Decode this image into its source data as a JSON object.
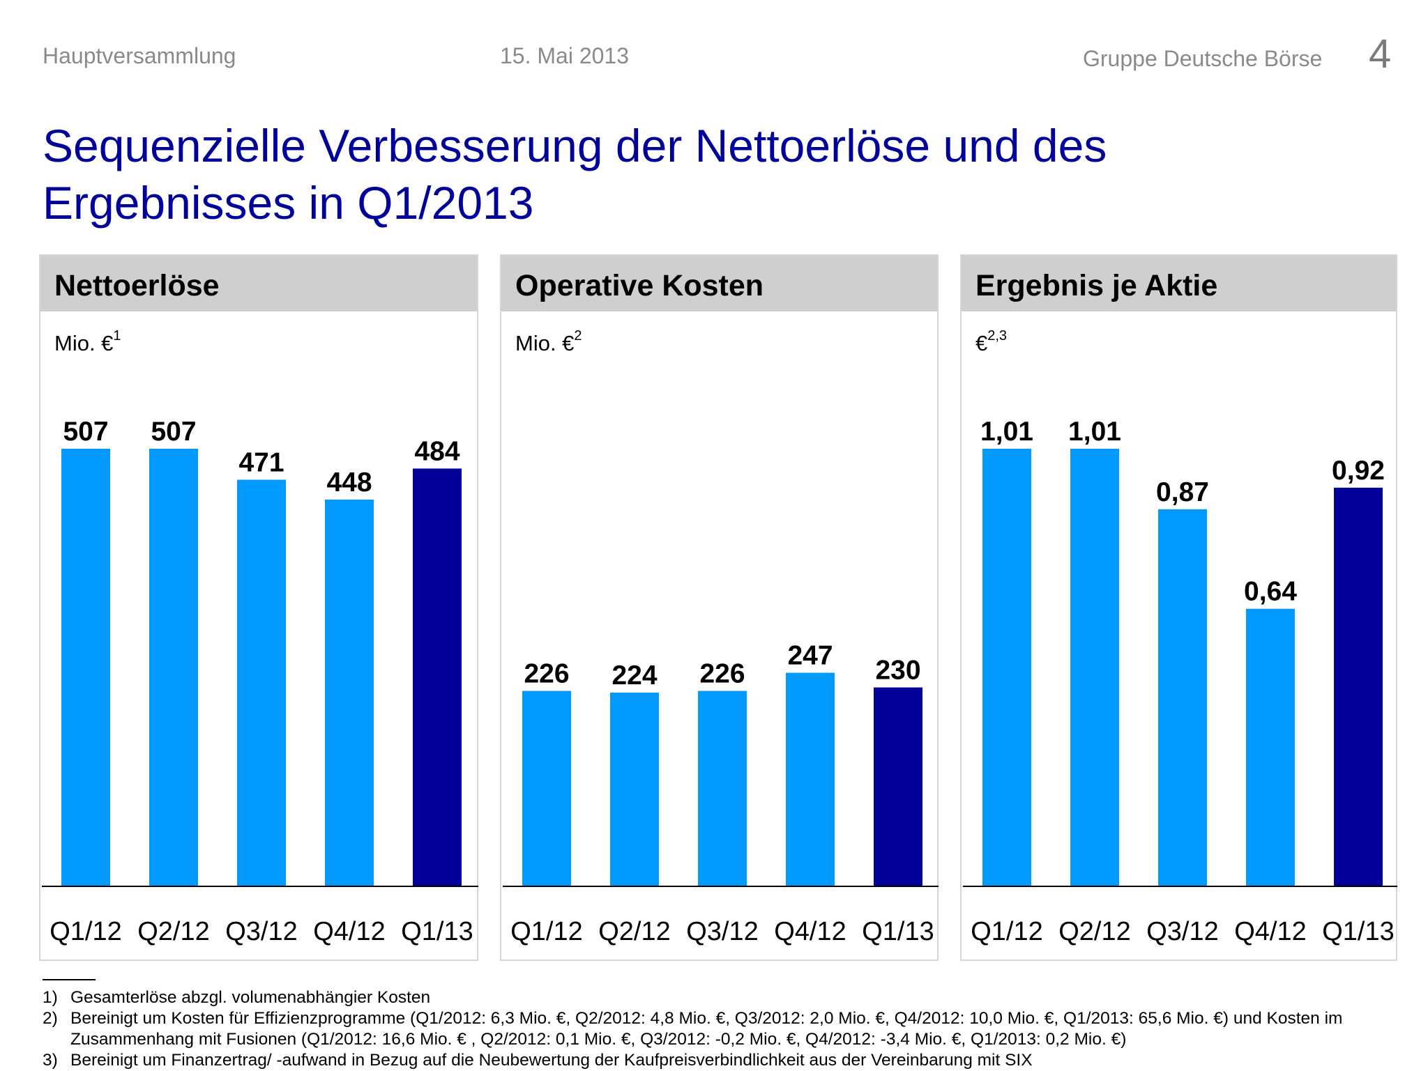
{
  "header": {
    "left": "Hauptversammlung",
    "date": "15. Mai 2013",
    "brand": "Gruppe Deutsche Börse",
    "page_number": "4"
  },
  "title": {
    "line1": "Sequenzielle Verbesserung der Nettoerlöse und des",
    "line2": "Ergebnisses in Q1/2013"
  },
  "colors": {
    "bar_light": "#0099ff",
    "bar_dark": "#000099",
    "title": "#00009a",
    "panel_header": "#cfcfd1"
  },
  "panels": [
    {
      "title": "Nettoerlöse",
      "unit": "Mio. €",
      "unit_sup": "1"
    },
    {
      "title": "Operative Kosten",
      "unit": "Mio. €",
      "unit_sup": "2"
    },
    {
      "title": "Ergebnis je Aktie",
      "unit": "€",
      "unit_sup": "2,3"
    }
  ],
  "chart_data": [
    {
      "type": "bar",
      "title": "Nettoerlöse",
      "ylabel": "Mio. €",
      "categories": [
        "Q1/12",
        "Q2/12",
        "Q3/12",
        "Q4/12",
        "Q1/13"
      ],
      "values": [
        507,
        507,
        471,
        448,
        484
      ],
      "labels": [
        "507",
        "507",
        "471",
        "448",
        "484"
      ],
      "highlight_index": 4,
      "ylim": [
        0,
        507
      ]
    },
    {
      "type": "bar",
      "title": "Operative Kosten",
      "ylabel": "Mio. €",
      "categories": [
        "Q1/12",
        "Q2/12",
        "Q3/12",
        "Q4/12",
        "Q1/13"
      ],
      "values": [
        226,
        224,
        226,
        247,
        230
      ],
      "labels": [
        "226",
        "224",
        "226",
        "247",
        "230"
      ],
      "highlight_index": 4,
      "ylim": [
        0,
        507
      ]
    },
    {
      "type": "bar",
      "title": "Ergebnis je Aktie",
      "ylabel": "€",
      "categories": [
        "Q1/12",
        "Q2/12",
        "Q3/12",
        "Q4/12",
        "Q1/13"
      ],
      "values": [
        1.01,
        1.01,
        0.87,
        0.64,
        0.92
      ],
      "labels": [
        "1,01",
        "1,01",
        "0,87",
        "0,64",
        "0,92"
      ],
      "highlight_index": 4,
      "ylim": [
        0,
        1.01
      ]
    }
  ],
  "footnotes": [
    {
      "num": "1)",
      "text": "Gesamterlöse abzgl. volumenabhängier Kosten"
    },
    {
      "num": "2)",
      "text": "Bereinigt um Kosten für Effizienzprogramme (Q1/2012: 6,3 Mio. €, Q2/2012: 4,8 Mio. €, Q3/2012: 2,0 Mio. €, Q4/2012: 10,0 Mio. €, Q1/2013: 65,6 Mio. €) und Kosten im Zusammenhang mit Fusionen (Q1/2012: 16,6 Mio. € , Q2/2012: 0,1 Mio. €, Q3/2012: -0,2 Mio. €, Q4/2012: -3,4 Mio. €, Q1/2013: 0,2 Mio. €)"
    },
    {
      "num": "3)",
      "text": "Bereinigt um Finanzertrag/ -aufwand in Bezug auf die Neubewertung der Kaufpreisverbindlichkeit aus der Vereinbarung mit SIX"
    }
  ]
}
